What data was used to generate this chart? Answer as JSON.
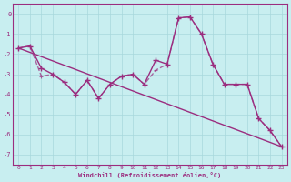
{
  "xlabel": "Windchill (Refroidissement éolien,°C)",
  "x_data": [
    0,
    1,
    2,
    3,
    4,
    5,
    6,
    7,
    8,
    9,
    10,
    11,
    12,
    13,
    14,
    15,
    16,
    17,
    18,
    19,
    20,
    21,
    22,
    23
  ],
  "line1_y": [
    -1.7,
    -1.6,
    -2.7,
    -3.0,
    -3.4,
    -4.0,
    -3.3,
    -4.2,
    -3.5,
    -3.1,
    -3.0,
    -3.5,
    -2.3,
    -2.5,
    -0.2,
    -0.15,
    -1.0,
    -2.5,
    -3.5,
    -3.5,
    -3.5,
    -5.2,
    -5.8,
    -6.6
  ],
  "line2_y": [
    -1.7,
    -1.6,
    -3.1,
    -3.0,
    -3.4,
    -4.0,
    -3.3,
    -4.2,
    -3.5,
    -3.1,
    -3.0,
    -3.5,
    -2.8,
    -2.5,
    -0.2,
    -0.15,
    -1.0,
    -2.5,
    -3.5,
    -3.5,
    -3.5,
    -5.2,
    -5.8,
    -6.6
  ],
  "trend_x": [
    0,
    23
  ],
  "trend_y": [
    -1.7,
    -6.6
  ],
  "color": "#9B2D7F",
  "bg_color": "#C8EEF0",
  "grid_color": "#A8D8DC",
  "ylim": [
    -7.5,
    0.5
  ],
  "xlim": [
    -0.5,
    23.5
  ]
}
